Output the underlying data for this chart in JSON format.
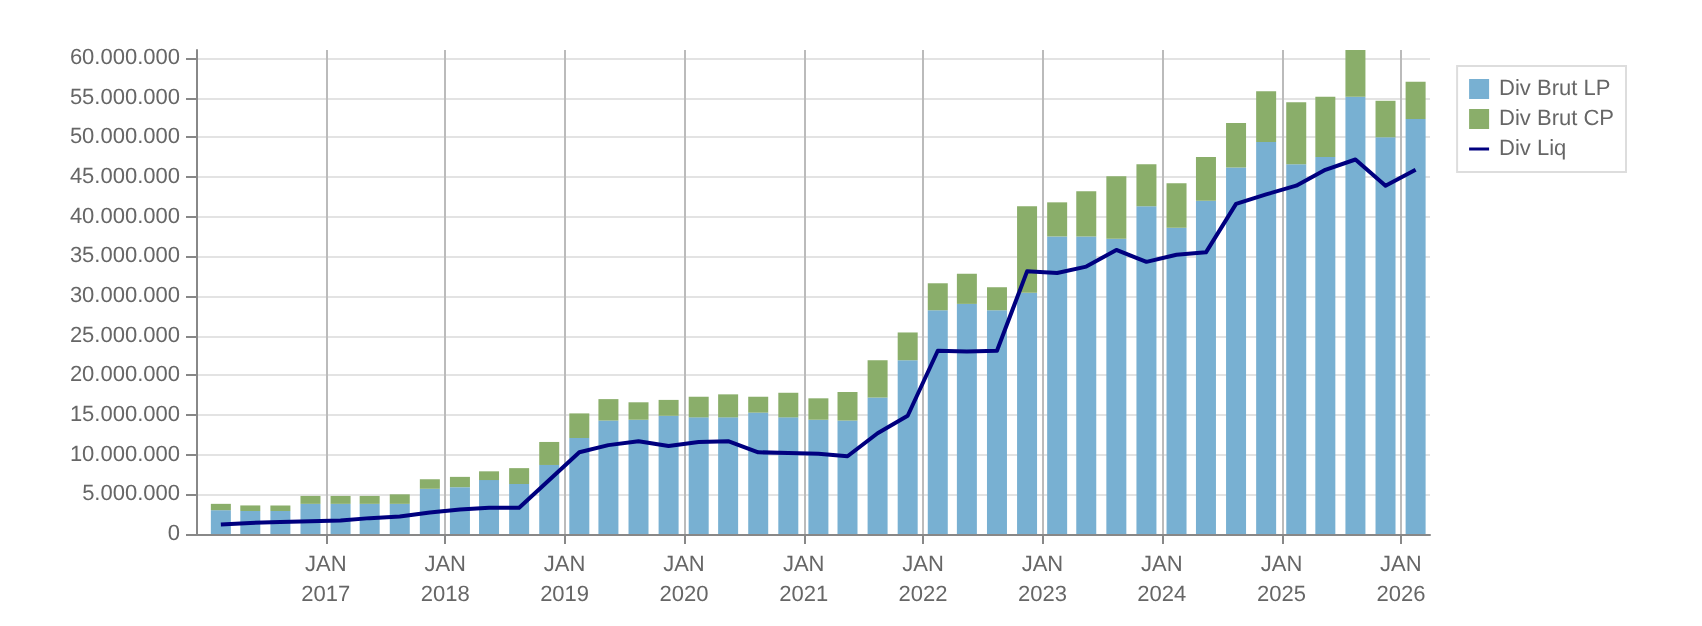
{
  "chart_data": {
    "type": "bar",
    "stacked": true,
    "x": [
      "2016-02-15",
      "2016-05-15",
      "2016-08-15",
      "2016-11-15",
      "2017-02-15",
      "2017-05-15",
      "2017-08-15",
      "2017-11-15",
      "2018-02-15",
      "2018-05-15",
      "2018-08-15",
      "2018-11-15",
      "2019-02-15",
      "2019-05-15",
      "2019-08-15",
      "2019-11-15",
      "2020-02-15",
      "2020-05-15",
      "2020-08-15",
      "2020-11-15",
      "2021-02-15",
      "2021-05-15",
      "2021-08-15",
      "2021-11-15",
      "2022-02-15",
      "2022-05-15",
      "2022-08-15",
      "2022-11-15",
      "2023-02-15",
      "2023-05-15",
      "2023-08-15",
      "2023-11-15",
      "2024-02-15",
      "2024-05-15",
      "2024-08-15",
      "2024-11-15",
      "2025-02-15",
      "2025-05-15",
      "2025-08-15",
      "2025-11-15",
      "2026-02-15"
    ],
    "series": [
      {
        "name": "Div Brut LP",
        "color": "#78b0d2",
        "values": [
          3000000,
          2900000,
          2900000,
          3800000,
          3800000,
          3800000,
          3800000,
          5700000,
          5900000,
          6800000,
          6300000,
          8700000,
          12100000,
          14300000,
          14400000,
          14900000,
          14700000,
          14700000,
          15300000,
          14700000,
          14400000,
          14300000,
          17200000,
          21900000,
          28200000,
          29000000,
          28200000,
          30400000,
          37500000,
          37500000,
          37200000,
          41300000,
          38600000,
          42000000,
          46200000,
          49400000,
          46600000,
          47500000,
          55100000,
          50000000,
          52300000
        ]
      },
      {
        "name": "Div Brut CP",
        "color": "#8aae6a",
        "values": [
          800000,
          700000,
          700000,
          1000000,
          1000000,
          1000000,
          1200000,
          1200000,
          1300000,
          1100000,
          2000000,
          2900000,
          3100000,
          2700000,
          2200000,
          2000000,
          2600000,
          2900000,
          2000000,
          3100000,
          2700000,
          3600000,
          4700000,
          3500000,
          3400000,
          3800000,
          2900000,
          10900000,
          4300000,
          5700000,
          7900000,
          5300000,
          5600000,
          5500000,
          5600000,
          6400000,
          7800000,
          7600000,
          5900000,
          4600000,
          4700000
        ]
      },
      {
        "name": "Div Liq",
        "type": "line",
        "color": "#00007f",
        "values": [
          1200000,
          1400000,
          1500000,
          1600000,
          1700000,
          2000000,
          2200000,
          2700000,
          3100000,
          3300000,
          3300000,
          6800000,
          10300000,
          11200000,
          11700000,
          11100000,
          11600000,
          11700000,
          10300000,
          10200000,
          10100000,
          9800000,
          12700000,
          14900000,
          23100000,
          23000000,
          23100000,
          33100000,
          32900000,
          33700000,
          35800000,
          34300000,
          35200000,
          35500000,
          41600000,
          42800000,
          43900000,
          45900000,
          47200000,
          43900000,
          45900000
        ]
      }
    ],
    "xlim": [
      "2015-12-01",
      "2026-03-31"
    ],
    "xticks": [
      {
        "value": "2017-01-01",
        "label": "JAN\n2017"
      },
      {
        "value": "2018-01-01",
        "label": "JAN\n2018"
      },
      {
        "value": "2019-01-01",
        "label": "JAN\n2019"
      },
      {
        "value": "2020-01-01",
        "label": "JAN\n2020"
      },
      {
        "value": "2021-01-01",
        "label": "JAN\n2021"
      },
      {
        "value": "2022-01-01",
        "label": "JAN\n2022"
      },
      {
        "value": "2023-01-01",
        "label": "JAN\n2023"
      },
      {
        "value": "2024-01-01",
        "label": "JAN\n2024"
      },
      {
        "value": "2025-01-01",
        "label": "JAN\n2025"
      },
      {
        "value": "2026-01-01",
        "label": "JAN\n2026"
      }
    ],
    "ylim": [
      0,
      61000000
    ],
    "yticks": [
      {
        "value": 0,
        "label": "0"
      },
      {
        "value": 5000000,
        "label": "5.000.000"
      },
      {
        "value": 10000000,
        "label": "10.000.000"
      },
      {
        "value": 15000000,
        "label": "15.000.000"
      },
      {
        "value": 20000000,
        "label": "20.000.000"
      },
      {
        "value": 25000000,
        "label": "25.000.000"
      },
      {
        "value": 30000000,
        "label": "30.000.000"
      },
      {
        "value": 35000000,
        "label": "35.000.000"
      },
      {
        "value": 40000000,
        "label": "40.000.000"
      },
      {
        "value": 45000000,
        "label": "45.000.000"
      },
      {
        "value": 50000000,
        "label": "50.000.000"
      },
      {
        "value": 55000000,
        "label": "55.000.000"
      },
      {
        "value": 60000000,
        "label": "60.000.000"
      }
    ],
    "grid": true,
    "legend": "top right",
    "marker": "none",
    "line_style": "solid"
  }
}
